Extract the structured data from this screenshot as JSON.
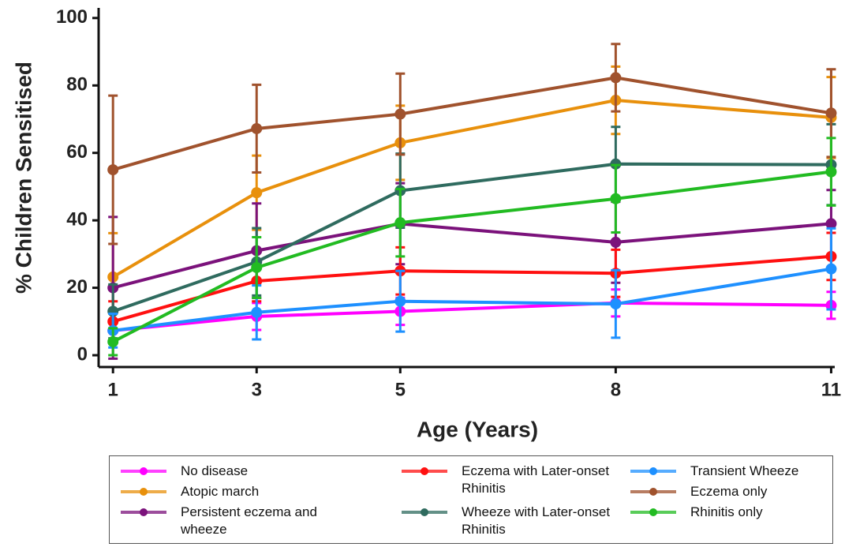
{
  "chart_data": {
    "type": "line",
    "xlabel": "Age (Years)",
    "ylabel": "% Children Sensitised",
    "x": [
      1,
      3,
      5,
      8,
      11
    ],
    "xlim": [
      0.8,
      11.05
    ],
    "xticks": [
      1,
      3,
      5,
      8,
      11
    ],
    "ylim": [
      -3.5,
      103
    ],
    "yticks": [
      0,
      20,
      40,
      60,
      80,
      100
    ],
    "legend": "bottom",
    "series": [
      {
        "name": "No disease",
        "color": "#ff00ff",
        "values": [
          7.3,
          11.5,
          13,
          15.5,
          14.8
        ],
        "errors": [
          3,
          4,
          4,
          4,
          4
        ]
      },
      {
        "name": "Atopic march",
        "color": "#e8900c",
        "values": [
          23.2,
          48.2,
          63,
          75.6,
          70.5
        ],
        "errors": [
          13,
          11,
          11,
          10,
          12
        ]
      },
      {
        "name": "Persistent eczema and wheeze",
        "color": "#7b127b",
        "values": [
          20,
          31,
          39,
          33.5,
          39
        ],
        "errors": [
          21,
          14,
          12,
          12,
          10
        ]
      },
      {
        "name": "Eczema with Later-onset Rhinitis",
        "color": "#ff1010",
        "values": [
          10,
          22,
          25,
          24.3,
          29.3
        ],
        "errors": [
          6,
          6,
          7,
          7,
          7
        ]
      },
      {
        "name": "Wheeze with Later-onset Rhinitis",
        "color": "#2f6b5f",
        "values": [
          13,
          27.7,
          48.8,
          56.7,
          56.5
        ],
        "errors": [
          8,
          10,
          11,
          11,
          12
        ]
      },
      {
        "name": "Transient Wheeze",
        "color": "#1e90ff",
        "values": [
          7.3,
          12.7,
          16,
          15.2,
          25.6
        ],
        "errors": [
          5,
          8,
          9,
          10,
          12
        ]
      },
      {
        "name": "Eczema only",
        "color": "#a0522d",
        "values": [
          55,
          67.2,
          71.5,
          82.3,
          71.8
        ],
        "errors": [
          22,
          13,
          12,
          10,
          13
        ]
      },
      {
        "name": "Rhinitis only",
        "color": "#22bb22",
        "values": [
          4,
          26,
          39.3,
          46.4,
          54.4
        ],
        "errors": [
          4,
          9,
          10,
          10,
          10
        ]
      }
    ]
  }
}
